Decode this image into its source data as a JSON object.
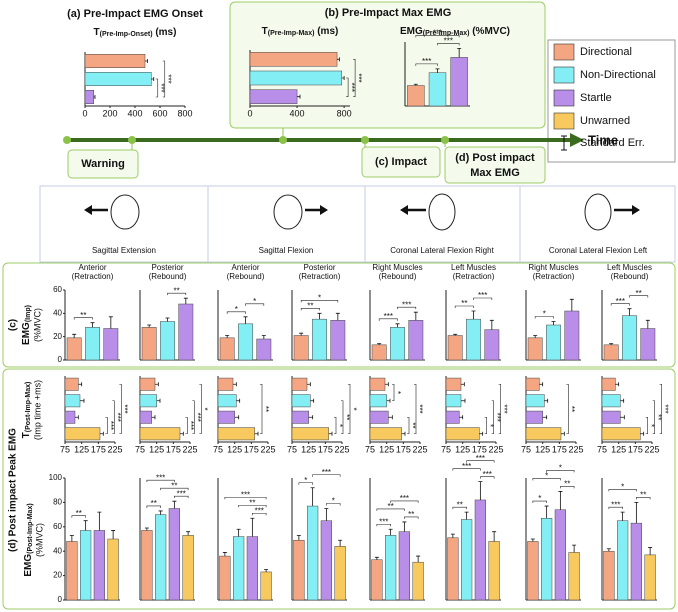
{
  "legend": {
    "series": [
      {
        "name": "Directional",
        "color": "#f4a582"
      },
      {
        "name": "Non-Directional",
        "color": "#84eef5"
      },
      {
        "name": "Startle",
        "color": "#b88ee8"
      },
      {
        "name": "Unwarned",
        "color": "#f7c95e"
      }
    ],
    "error_label": "Standard Err."
  },
  "timeline": {
    "warning": "Warning",
    "impact": "(c) Impact",
    "post": [
      "(d) Post impact",
      "Max EMG"
    ],
    "axis": "Time"
  },
  "views": [
    "Sagittal Extension",
    "Sagittal Flexion",
    "Coronal Lateral Flexion Right",
    "Coronal Lateral Flexion Left"
  ],
  "rows": {
    "c": {
      "label": "(c)",
      "name": "EMG",
      "sub": "(Imp)",
      "unit": "(%MVC)"
    },
    "d": {
      "label": "(d) Post impact Peak EMG",
      "t_name": "T",
      "t_sub": "(Post-Imp-Max)",
      "t_unit": "(Imp time +ms)",
      "e_name": "EMG",
      "e_sub": "(Post-Imp-Max)",
      "e_unit": "(%MVC)"
    }
  },
  "chart_data": [
    {
      "type": "barh",
      "title": "(a) Pre-Impact EMG Onset",
      "label": [
        "T",
        "(Pre-Imp-Onset)",
        " (ms)"
      ],
      "values": [
        480,
        530,
        70
      ],
      "errors": [
        20,
        20,
        10
      ],
      "xlim": [
        0,
        800
      ],
      "xticks": [
        0,
        200,
        400,
        600,
        800
      ],
      "annotations": [
        {
          "label": "***",
          "pair": [
            1,
            2
          ]
        },
        {
          "label": "***",
          "pair": [
            0,
            2
          ]
        }
      ]
    },
    {
      "type": "barh",
      "title": "(b) Pre-Impact Max EMG",
      "label": [
        "T",
        "(Pre-Imp-Max)",
        " (ms)"
      ],
      "values": [
        740,
        780,
        400
      ],
      "errors": [
        20,
        20,
        25
      ],
      "xlim": [
        0,
        850
      ],
      "xticks": [
        0,
        400,
        800
      ],
      "annotations": [
        {
          "label": "***",
          "pair": [
            1,
            2
          ]
        },
        {
          "label": "***",
          "pair": [
            0,
            2
          ]
        }
      ]
    },
    {
      "type": "bar",
      "label": [
        "EMG",
        "(Pre-Imp-Max)",
        " (%MVC)"
      ],
      "values": [
        16,
        26,
        38
      ],
      "errors": [
        1,
        3,
        7
      ],
      "ylim": [
        0,
        50
      ],
      "annotations": [
        {
          "label": "***",
          "pair": [
            0,
            1
          ]
        },
        {
          "label": "***",
          "pair": [
            1,
            2
          ]
        },
        {
          "label": "***",
          "pair": [
            0,
            2
          ]
        }
      ]
    },
    {
      "type": "bar",
      "subtitle": [
        "Anterior",
        "(Retraction)"
      ],
      "values": [
        19,
        28,
        27
      ],
      "errors": [
        3,
        4,
        10
      ],
      "ylim": [
        0,
        60
      ],
      "yticks": [
        0,
        20,
        40,
        60
      ],
      "annotations": [
        {
          "label": "**",
          "pair": [
            0,
            1
          ]
        }
      ]
    },
    {
      "type": "bar",
      "subtitle": [
        "Posterior",
        "(Rebound)"
      ],
      "values": [
        28,
        33,
        48
      ],
      "errors": [
        2,
        3,
        5
      ],
      "ylim": [
        0,
        60
      ],
      "annotations": [
        {
          "label": "**",
          "pair": [
            1,
            2
          ]
        }
      ]
    },
    {
      "type": "bar",
      "subtitle": [
        "Anterior",
        "(Rebound)"
      ],
      "values": [
        19,
        31,
        18
      ],
      "errors": [
        2,
        6,
        3
      ],
      "ylim": [
        0,
        60
      ],
      "annotations": [
        {
          "label": "*",
          "pair": [
            0,
            1
          ]
        },
        {
          "label": "*",
          "pair": [
            1,
            2
          ]
        }
      ]
    },
    {
      "type": "bar",
      "subtitle": [
        "Posterior",
        "(Retraction)"
      ],
      "values": [
        21,
        35,
        34
      ],
      "errors": [
        2,
        5,
        6
      ],
      "ylim": [
        0,
        60
      ],
      "annotations": [
        {
          "label": "**",
          "pair": [
            0,
            1
          ]
        },
        {
          "label": "*",
          "pair": [
            0,
            2
          ]
        }
      ]
    },
    {
      "type": "bar",
      "subtitle": [
        "Right Muscles",
        "(Rebound)"
      ],
      "values": [
        13,
        28,
        34
      ],
      "errors": [
        1,
        3,
        7
      ],
      "ylim": [
        0,
        60
      ],
      "annotations": [
        {
          "label": "***",
          "pair": [
            0,
            1
          ]
        },
        {
          "label": "***",
          "pair": [
            1,
            2
          ]
        }
      ]
    },
    {
      "type": "bar",
      "subtitle": [
        "Left Muscles",
        "(Retraction)"
      ],
      "values": [
        21,
        35,
        26
      ],
      "errors": [
        1,
        7,
        8
      ],
      "ylim": [
        0,
        60
      ],
      "annotations": [
        {
          "label": "**",
          "pair": [
            0,
            1
          ]
        },
        {
          "label": "***",
          "pair": [
            1,
            2
          ]
        }
      ]
    },
    {
      "type": "bar",
      "subtitle": [
        "Right Muscles",
        "(Retraction)"
      ],
      "values": [
        19,
        30,
        42
      ],
      "errors": [
        2,
        3,
        10
      ],
      "ylim": [
        0,
        60
      ],
      "annotations": [
        {
          "label": "*",
          "pair": [
            0,
            1
          ]
        }
      ]
    },
    {
      "type": "bar",
      "subtitle": [
        "Left Muscles",
        "(Rebound)"
      ],
      "values": [
        13,
        38,
        27
      ],
      "errors": [
        1,
        6,
        7
      ],
      "ylim": [
        0,
        60
      ],
      "annotations": [
        {
          "label": "***",
          "pair": [
            0,
            1
          ]
        },
        {
          "label": "**",
          "pair": [
            1,
            2
          ]
        }
      ]
    },
    {
      "type": "barh",
      "values": [
        115,
        120,
        105,
        180
      ],
      "errors": [
        10,
        12,
        10,
        10
      ],
      "xlim": [
        75,
        225
      ],
      "xticks": [
        75,
        125,
        175,
        225
      ],
      "annotations": [
        {
          "label": "***",
          "pair": [
            2,
            3
          ]
        },
        {
          "label": "***",
          "pair": [
            1,
            3
          ]
        },
        {
          "label": "***",
          "pair": [
            0,
            3
          ]
        }
      ]
    },
    {
      "type": "barh",
      "values": [
        120,
        125,
        110,
        195
      ],
      "errors": [
        10,
        10,
        10,
        10
      ],
      "xlim": [
        75,
        225
      ],
      "xticks": [
        75,
        125,
        175,
        225
      ],
      "annotations": [
        {
          "label": "***",
          "pair": [
            2,
            3
          ]
        },
        {
          "label": "***",
          "pair": [
            1,
            3
          ]
        },
        {
          "label": "*",
          "pair": [
            0,
            3
          ]
        }
      ]
    },
    {
      "type": "barh",
      "values": [
        120,
        130,
        125,
        185
      ],
      "errors": [
        10,
        10,
        12,
        10
      ],
      "xlim": [
        75,
        225
      ],
      "xticks": [
        75,
        125,
        175,
        225
      ],
      "annotations": [
        {
          "label": "**",
          "pair": [
            0,
            3
          ]
        }
      ]
    },
    {
      "type": "barh",
      "values": [
        120,
        130,
        125,
        185
      ],
      "errors": [
        10,
        10,
        12,
        10
      ],
      "xlim": [
        75,
        225
      ],
      "xticks": [
        75,
        125,
        175,
        225
      ],
      "annotations": [
        {
          "label": "*",
          "pair": [
            2,
            3
          ]
        },
        {
          "label": "**",
          "pair": [
            1,
            3
          ]
        },
        {
          "label": "*",
          "pair": [
            0,
            3
          ]
        }
      ]
    },
    {
      "type": "barh",
      "values": [
        120,
        125,
        130,
        170
      ],
      "errors": [
        10,
        10,
        12,
        10
      ],
      "xlim": [
        75,
        225
      ],
      "xticks": [
        75,
        125,
        175,
        225
      ],
      "annotations": [
        {
          "label": "*",
          "pair": [
            0,
            1
          ]
        },
        {
          "label": "**",
          "pair": [
            2,
            3
          ]
        },
        {
          "label": "***",
          "pair": [
            0,
            3
          ]
        }
      ]
    },
    {
      "type": "barh",
      "values": [
        120,
        120,
        115,
        175
      ],
      "errors": [
        10,
        12,
        10,
        10
      ],
      "xlim": [
        75,
        225
      ],
      "xticks": [
        75,
        125,
        175,
        225
      ],
      "annotations": [
        {
          "label": "*",
          "pair": [
            2,
            3
          ]
        },
        {
          "label": "***",
          "pair": [
            1,
            3
          ]
        },
        {
          "label": "***",
          "pair": [
            0,
            3
          ]
        }
      ]
    },
    {
      "type": "barh",
      "values": [
        115,
        130,
        125,
        180
      ],
      "errors": [
        10,
        10,
        12,
        10
      ],
      "xlim": [
        75,
        225
      ],
      "xticks": [
        75,
        125,
        175,
        225
      ],
      "annotations": [
        {
          "label": "**",
          "pair": [
            0,
            3
          ]
        }
      ]
    },
    {
      "type": "barh",
      "values": [
        115,
        130,
        130,
        190
      ],
      "errors": [
        10,
        10,
        12,
        10
      ],
      "xlim": [
        75,
        225
      ],
      "xticks": [
        75,
        125,
        175,
        225
      ],
      "annotations": [
        {
          "label": "*",
          "pair": [
            2,
            3
          ]
        },
        {
          "label": "**",
          "pair": [
            1,
            3
          ]
        },
        {
          "label": "***",
          "pair": [
            0,
            3
          ]
        }
      ]
    },
    {
      "type": "bar",
      "values": [
        48,
        57,
        57,
        50
      ],
      "errors": [
        5,
        8,
        15,
        7
      ],
      "ylim": [
        0,
        100
      ],
      "yticks": [
        0,
        20,
        40,
        60,
        80,
        100
      ],
      "annotations": [
        {
          "label": "**",
          "pair": [
            0,
            1
          ]
        }
      ]
    },
    {
      "type": "bar",
      "values": [
        57,
        70,
        75,
        53
      ],
      "errors": [
        2,
        3,
        6,
        3
      ],
      "ylim": [
        0,
        100
      ],
      "annotations": [
        {
          "label": "**",
          "pair": [
            0,
            1
          ]
        },
        {
          "label": "***",
          "pair": [
            2,
            3
          ]
        },
        {
          "label": "**",
          "pair": [
            1,
            3
          ]
        },
        {
          "label": "***",
          "pair": [
            0,
            2
          ]
        }
      ]
    },
    {
      "type": "bar",
      "values": [
        36,
        52,
        52,
        23
      ],
      "errors": [
        3,
        6,
        15,
        2
      ],
      "ylim": [
        0,
        100
      ],
      "annotations": [
        {
          "label": "***",
          "pair": [
            2,
            3
          ]
        },
        {
          "label": "**",
          "pair": [
            1,
            3
          ]
        },
        {
          "label": "***",
          "pair": [
            0,
            3
          ]
        }
      ]
    },
    {
      "type": "bar",
      "values": [
        49,
        77,
        65,
        44
      ],
      "errors": [
        4,
        15,
        10,
        5
      ],
      "ylim": [
        0,
        100
      ],
      "annotations": [
        {
          "label": "*",
          "pair": [
            0,
            1
          ]
        },
        {
          "label": "*",
          "pair": [
            2,
            3
          ]
        },
        {
          "label": "***",
          "pair": [
            1,
            3
          ]
        }
      ]
    },
    {
      "type": "bar",
      "values": [
        33,
        53,
        56,
        31
      ],
      "errors": [
        2,
        5,
        8,
        5
      ],
      "ylim": [
        0,
        100
      ],
      "annotations": [
        {
          "label": "***",
          "pair": [
            0,
            1
          ]
        },
        {
          "label": "**",
          "pair": [
            2,
            3
          ]
        },
        {
          "label": "**",
          "pair": [
            0,
            2
          ]
        },
        {
          "label": "***",
          "pair": [
            1,
            3
          ]
        }
      ]
    },
    {
      "type": "bar",
      "values": [
        51,
        66,
        82,
        48
      ],
      "errors": [
        3,
        6,
        15,
        8
      ],
      "ylim": [
        0,
        100
      ],
      "annotations": [
        {
          "label": "**",
          "pair": [
            0,
            1
          ]
        },
        {
          "label": "***",
          "pair": [
            2,
            3
          ]
        },
        {
          "label": "***",
          "pair": [
            0,
            2
          ]
        },
        {
          "label": "***",
          "pair": [
            1,
            3
          ]
        }
      ]
    },
    {
      "type": "bar",
      "values": [
        48,
        67,
        74,
        39
      ],
      "errors": [
        2,
        10,
        15,
        6
      ],
      "ylim": [
        0,
        100
      ],
      "annotations": [
        {
          "label": "*",
          "pair": [
            0,
            1
          ]
        },
        {
          "label": "**",
          "pair": [
            2,
            3
          ]
        },
        {
          "label": "*",
          "pair": [
            0,
            2
          ]
        },
        {
          "label": "*",
          "pair": [
            1,
            3
          ]
        }
      ]
    },
    {
      "type": "bar",
      "values": [
        40,
        65,
        63,
        37
      ],
      "errors": [
        2,
        7,
        17,
        6
      ],
      "ylim": [
        0,
        100
      ],
      "annotations": [
        {
          "label": "***",
          "pair": [
            0,
            1
          ]
        },
        {
          "label": "**",
          "pair": [
            2,
            3
          ]
        },
        {
          "label": "*",
          "pair": [
            0,
            2
          ]
        }
      ]
    }
  ]
}
